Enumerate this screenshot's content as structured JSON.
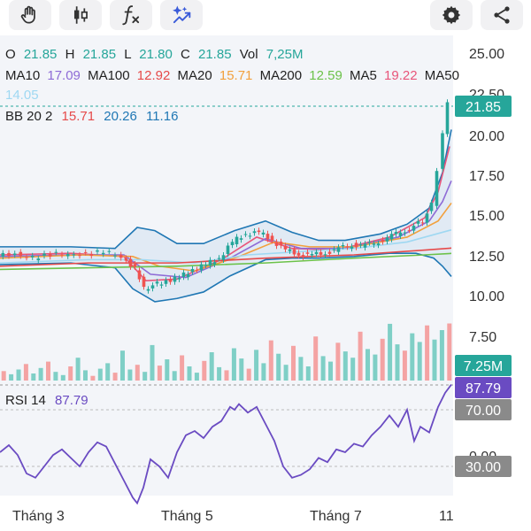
{
  "toolbar": {
    "icons": [
      "hand-tool-icon",
      "candlestick-icon",
      "function-icon",
      "ai-sparkle-icon",
      "settings-icon",
      "share-icon"
    ]
  },
  "ohlc": {
    "o_label": "O",
    "o": "21.85",
    "h_label": "H",
    "h": "21.85",
    "l_label": "L",
    "l": "21.80",
    "c_label": "C",
    "c": "21.85",
    "vol_label": "Vol",
    "vol": "7,25M"
  },
  "ma": [
    {
      "label": "MA10",
      "value": "17.09",
      "color": "#8e6bd6"
    },
    {
      "label": "MA100",
      "value": "12.92",
      "color": "#e64a4a"
    },
    {
      "label": "MA20",
      "value": "15.71",
      "color": "#f2a03d"
    },
    {
      "label": "MA200",
      "value": "12.59",
      "color": "#6cc24a"
    },
    {
      "label": "MA5",
      "value": "19.22",
      "color": "#e8557a"
    },
    {
      "label": "MA50",
      "value": "14.05",
      "color": "#9fd8f2"
    }
  ],
  "bb": {
    "label": "BB 20 2",
    "mid": "15.71",
    "upper": "20.26",
    "lower": "11.16",
    "mid_color": "#e64a4a",
    "upper_color": "#1f77b4",
    "lower_color": "#1f77b4"
  },
  "rsi": {
    "label": "RSI 14",
    "value": "87.79",
    "color": "#6a4bc2"
  },
  "badges": {
    "price": "21.85",
    "volume": "7.25M",
    "rsi": "87.79",
    "rsi_upper": "70.00",
    "rsi_lower": "30.00"
  },
  "colors": {
    "up": "#26a69a",
    "down": "#ef5350",
    "price_line": "#26a69a"
  },
  "chart_data": {
    "type": "candlestick",
    "price_axis": {
      "ticks": [
        "25.00",
        "22.50",
        "20.00",
        "17.50",
        "15.00",
        "12.50",
        "10.00",
        "7.50"
      ],
      "ylim": [
        6.5,
        26.5
      ]
    },
    "rsi_axis": {
      "ticks": [
        "0.00"
      ],
      "levels": [
        70,
        30
      ],
      "ylim": [
        0,
        100
      ]
    },
    "x_labels": [
      "Tháng 3",
      "Tháng 5",
      "Tháng 7",
      "11"
    ],
    "last_close": 21.85,
    "last_volume_m": 7.25,
    "last_rsi": 87.79,
    "price_path": [
      [
        0,
        12.4
      ],
      [
        20,
        12.6
      ],
      [
        40,
        12.3
      ],
      [
        60,
        12.5
      ],
      [
        80,
        12.6
      ],
      [
        100,
        12.5
      ],
      [
        120,
        12.7
      ],
      [
        140,
        12.4
      ],
      [
        155,
        11.6
      ],
      [
        165,
        10.4
      ],
      [
        175,
        10.6
      ],
      [
        190,
        10.9
      ],
      [
        205,
        11.1
      ],
      [
        220,
        11.6
      ],
      [
        235,
        11.9
      ],
      [
        250,
        12.3
      ],
      [
        265,
        13.3
      ],
      [
        280,
        13.8
      ],
      [
        295,
        13.9
      ],
      [
        310,
        13.4
      ],
      [
        325,
        12.8
      ],
      [
        340,
        12.5
      ],
      [
        355,
        12.5
      ],
      [
        370,
        12.6
      ],
      [
        385,
        12.9
      ],
      [
        400,
        13.1
      ],
      [
        415,
        13.1
      ],
      [
        430,
        13.3
      ],
      [
        445,
        13.7
      ],
      [
        460,
        14.0
      ],
      [
        470,
        14.3
      ],
      [
        480,
        14.6
      ],
      [
        490,
        15.6
      ],
      [
        497,
        17.8
      ],
      [
        503,
        19.9
      ],
      [
        508,
        21.85
      ]
    ],
    "ma_series": {
      "MA5": [
        [
          0,
          12.5
        ],
        [
          80,
          12.6
        ],
        [
          140,
          12.4
        ],
        [
          165,
          10.9
        ],
        [
          200,
          11.0
        ],
        [
          250,
          12.2
        ],
        [
          290,
          13.6
        ],
        [
          330,
          12.9
        ],
        [
          380,
          12.8
        ],
        [
          440,
          13.6
        ],
        [
          480,
          14.8
        ],
        [
          495,
          16.4
        ],
        [
          508,
          19.22
        ]
      ],
      "MA10": [
        [
          0,
          12.4
        ],
        [
          80,
          12.5
        ],
        [
          140,
          12.5
        ],
        [
          170,
          11.3
        ],
        [
          210,
          11.1
        ],
        [
          260,
          12.3
        ],
        [
          300,
          13.5
        ],
        [
          340,
          12.9
        ],
        [
          390,
          12.9
        ],
        [
          450,
          13.6
        ],
        [
          485,
          14.6
        ],
        [
          500,
          15.8
        ],
        [
          510,
          17.09
        ]
      ],
      "MA20": [
        [
          0,
          12.3
        ],
        [
          90,
          12.5
        ],
        [
          150,
          12.4
        ],
        [
          180,
          11.8
        ],
        [
          220,
          11.5
        ],
        [
          270,
          12.4
        ],
        [
          310,
          13.3
        ],
        [
          350,
          13.0
        ],
        [
          400,
          13.0
        ],
        [
          460,
          13.6
        ],
        [
          495,
          14.6
        ],
        [
          510,
          15.71
        ]
      ],
      "MA50": [
        [
          0,
          12.0
        ],
        [
          100,
          12.2
        ],
        [
          160,
          12.2
        ],
        [
          220,
          12.0
        ],
        [
          280,
          12.5
        ],
        [
          340,
          12.7
        ],
        [
          400,
          12.9
        ],
        [
          460,
          13.3
        ],
        [
          510,
          14.05
        ]
      ],
      "MA100": [
        [
          0,
          11.8
        ],
        [
          100,
          12.0
        ],
        [
          200,
          12.0
        ],
        [
          300,
          12.3
        ],
        [
          400,
          12.5
        ],
        [
          480,
          12.8
        ],
        [
          510,
          12.92
        ]
      ],
      "MA200": [
        [
          0,
          11.6
        ],
        [
          100,
          11.7
        ],
        [
          200,
          11.8
        ],
        [
          300,
          12.0
        ],
        [
          400,
          12.3
        ],
        [
          480,
          12.5
        ],
        [
          510,
          12.59
        ]
      ]
    },
    "bb_series": {
      "upper": [
        [
          0,
          13.0
        ],
        [
          80,
          13.0
        ],
        [
          130,
          12.9
        ],
        [
          155,
          14.2
        ],
        [
          175,
          14.0
        ],
        [
          200,
          13.2
        ],
        [
          230,
          13.2
        ],
        [
          265,
          14.0
        ],
        [
          300,
          14.6
        ],
        [
          330,
          13.9
        ],
        [
          360,
          13.4
        ],
        [
          390,
          13.4
        ],
        [
          430,
          13.8
        ],
        [
          460,
          14.4
        ],
        [
          485,
          15.4
        ],
        [
          500,
          17.6
        ],
        [
          510,
          20.26
        ]
      ],
      "lower": [
        [
          0,
          11.9
        ],
        [
          80,
          12.0
        ],
        [
          130,
          11.7
        ],
        [
          150,
          10.4
        ],
        [
          175,
          9.6
        ],
        [
          200,
          9.8
        ],
        [
          230,
          10.2
        ],
        [
          260,
          11.2
        ],
        [
          300,
          12.2
        ],
        [
          330,
          12.3
        ],
        [
          360,
          12.3
        ],
        [
          400,
          12.4
        ],
        [
          440,
          12.6
        ],
        [
          470,
          12.6
        ],
        [
          490,
          12.3
        ],
        [
          500,
          11.8
        ],
        [
          510,
          11.16
        ]
      ]
    },
    "volume_heights_m": [
      1.2,
      0.8,
      1.4,
      2.1,
      0.9,
      1.6,
      2.4,
      1.1,
      0.7,
      1.8,
      2.9,
      1.3,
      0.6,
      1.5,
      2.2,
      1.0,
      3.8,
      1.4,
      2.0,
      1.1,
      4.5,
      1.9,
      2.7,
      1.2,
      3.2,
      1.8,
      1.0,
      2.5,
      3.6,
      1.7,
      1.3,
      4.1,
      2.8,
      1.5,
      3.9,
      2.2,
      5.1,
      3.4,
      2.0,
      4.4,
      3.0,
      1.8,
      5.6,
      3.1,
      2.4,
      4.8,
      3.7,
      2.9,
      6.2,
      4.0,
      3.3,
      5.3,
      7.2,
      4.6,
      3.8,
      6.0,
      4.9,
      7.0,
      5.2,
      6.4,
      7.25
    ],
    "rsi_path": [
      [
        0,
        40
      ],
      [
        10,
        45
      ],
      [
        20,
        38
      ],
      [
        30,
        25
      ],
      [
        40,
        22
      ],
      [
        50,
        30
      ],
      [
        60,
        38
      ],
      [
        70,
        42
      ],
      [
        80,
        36
      ],
      [
        90,
        30
      ],
      [
        100,
        40
      ],
      [
        110,
        47
      ],
      [
        120,
        44
      ],
      [
        130,
        32
      ],
      [
        140,
        20
      ],
      [
        150,
        8
      ],
      [
        155,
        4
      ],
      [
        162,
        15
      ],
      [
        170,
        35
      ],
      [
        180,
        30
      ],
      [
        190,
        22
      ],
      [
        200,
        40
      ],
      [
        210,
        52
      ],
      [
        220,
        55
      ],
      [
        230,
        50
      ],
      [
        240,
        58
      ],
      [
        250,
        62
      ],
      [
        260,
        72
      ],
      [
        265,
        70
      ],
      [
        270,
        74
      ],
      [
        280,
        68
      ],
      [
        290,
        72
      ],
      [
        300,
        60
      ],
      [
        310,
        48
      ],
      [
        320,
        30
      ],
      [
        330,
        22
      ],
      [
        340,
        24
      ],
      [
        350,
        28
      ],
      [
        360,
        36
      ],
      [
        370,
        33
      ],
      [
        380,
        42
      ],
      [
        390,
        40
      ],
      [
        400,
        46
      ],
      [
        410,
        44
      ],
      [
        420,
        52
      ],
      [
        430,
        58
      ],
      [
        440,
        66
      ],
      [
        450,
        58
      ],
      [
        460,
        70
      ],
      [
        468,
        48
      ],
      [
        475,
        58
      ],
      [
        485,
        54
      ],
      [
        495,
        72
      ],
      [
        503,
        82
      ],
      [
        510,
        87.79
      ]
    ]
  }
}
